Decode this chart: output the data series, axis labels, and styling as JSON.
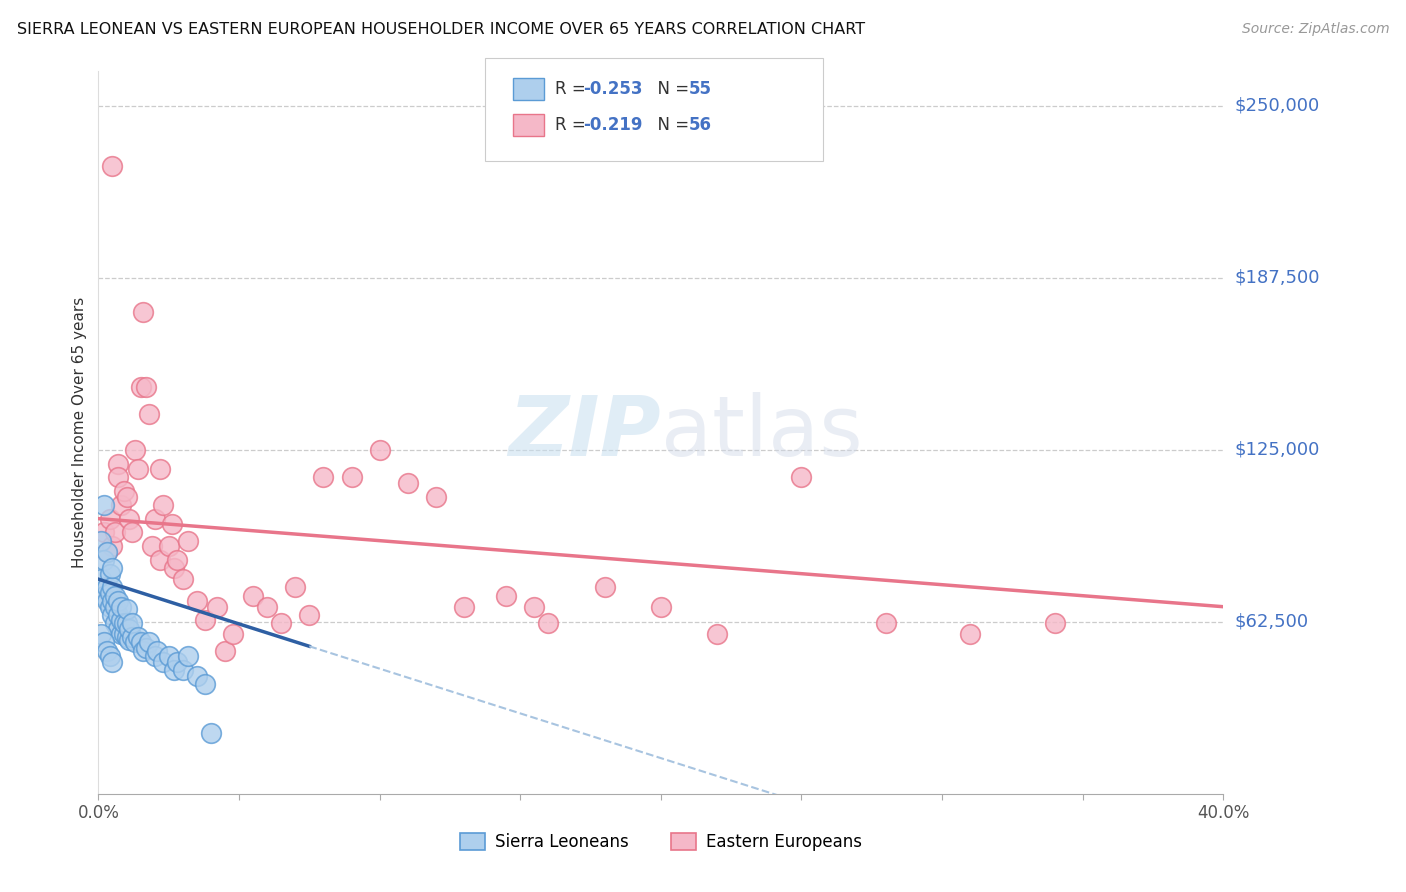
{
  "title": "SIERRA LEONEAN VS EASTERN EUROPEAN HOUSEHOLDER INCOME OVER 65 YEARS CORRELATION CHART",
  "source": "Source: ZipAtlas.com",
  "ylabel": "Householder Income Over 65 years",
  "y_ticks": [
    0,
    62500,
    125000,
    187500,
    250000
  ],
  "y_tick_labels": [
    "",
    "$62,500",
    "$125,000",
    "$187,500",
    "$250,000"
  ],
  "x_min": 0.0,
  "x_max": 0.4,
  "y_min": 0,
  "y_max": 262500,
  "sierra_R": "-0.253",
  "sierra_N": "55",
  "eastern_R": "-0.219",
  "eastern_N": "56",
  "sierra_color": "#aecfed",
  "eastern_color": "#f5b8c8",
  "sierra_edge": "#5b9bd5",
  "eastern_edge": "#e8758a",
  "trend_blue": "#2e5fa3",
  "trend_pink": "#e8758a",
  "trend_dash_color": "#a8c4e0",
  "watermark_color": "#c8dff0",
  "background": "#ffffff",
  "legend_label_1": "Sierra Leoneans",
  "legend_label_2": "Eastern Europeans",
  "sierra_x": [
    0.001,
    0.001,
    0.002,
    0.002,
    0.002,
    0.003,
    0.003,
    0.003,
    0.004,
    0.004,
    0.004,
    0.005,
    0.005,
    0.005,
    0.005,
    0.006,
    0.006,
    0.006,
    0.007,
    0.007,
    0.007,
    0.008,
    0.008,
    0.008,
    0.009,
    0.009,
    0.01,
    0.01,
    0.01,
    0.011,
    0.011,
    0.012,
    0.012,
    0.013,
    0.014,
    0.015,
    0.016,
    0.017,
    0.018,
    0.02,
    0.021,
    0.023,
    0.025,
    0.027,
    0.028,
    0.03,
    0.032,
    0.035,
    0.038,
    0.04,
    0.001,
    0.002,
    0.003,
    0.004,
    0.005
  ],
  "sierra_y": [
    78000,
    92000,
    72000,
    85000,
    105000,
    70000,
    75000,
    88000,
    68000,
    73000,
    80000,
    65000,
    70000,
    75000,
    82000,
    62000,
    68000,
    72000,
    60000,
    65000,
    70000,
    58000,
    63000,
    68000,
    58000,
    62000,
    57000,
    62000,
    67000,
    56000,
    60000,
    57000,
    62000,
    55000,
    57000,
    55000,
    52000,
    53000,
    55000,
    50000,
    52000,
    48000,
    50000,
    45000,
    48000,
    45000,
    50000,
    43000,
    40000,
    22000,
    58000,
    55000,
    52000,
    50000,
    48000
  ],
  "eastern_x": [
    0.002,
    0.003,
    0.004,
    0.005,
    0.006,
    0.007,
    0.007,
    0.008,
    0.009,
    0.01,
    0.011,
    0.012,
    0.013,
    0.014,
    0.015,
    0.016,
    0.017,
    0.018,
    0.019,
    0.02,
    0.022,
    0.023,
    0.025,
    0.026,
    0.027,
    0.028,
    0.03,
    0.032,
    0.035,
    0.038,
    0.042,
    0.045,
    0.048,
    0.055,
    0.06,
    0.065,
    0.07,
    0.075,
    0.08,
    0.09,
    0.1,
    0.11,
    0.13,
    0.145,
    0.16,
    0.18,
    0.2,
    0.22,
    0.25,
    0.28,
    0.31,
    0.34,
    0.005,
    0.022,
    0.12,
    0.155
  ],
  "eastern_y": [
    95000,
    88000,
    100000,
    90000,
    95000,
    120000,
    115000,
    105000,
    110000,
    108000,
    100000,
    95000,
    125000,
    118000,
    148000,
    175000,
    148000,
    138000,
    90000,
    100000,
    85000,
    105000,
    90000,
    98000,
    82000,
    85000,
    78000,
    92000,
    70000,
    63000,
    68000,
    52000,
    58000,
    72000,
    68000,
    62000,
    75000,
    65000,
    115000,
    115000,
    125000,
    113000,
    68000,
    72000,
    62000,
    75000,
    68000,
    58000,
    115000,
    62000,
    58000,
    62000,
    228000,
    118000,
    108000,
    68000
  ]
}
